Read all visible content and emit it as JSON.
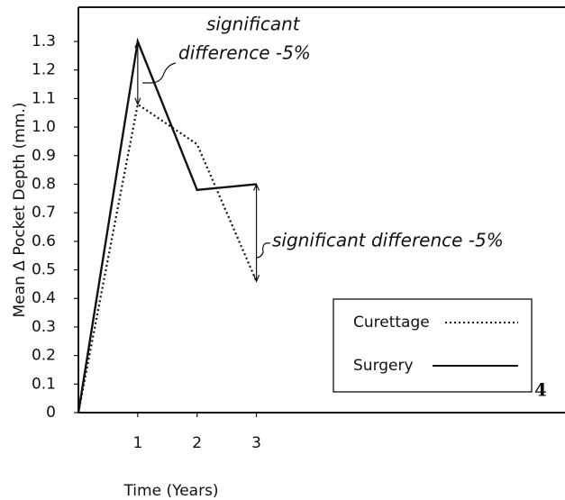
{
  "chart_data": {
    "type": "line",
    "y_label": "Mean Δ Pocket Depth (mm.)",
    "x_label": "Time (Years)",
    "x": [
      0,
      1,
      2,
      3
    ],
    "xlim": [
      0,
      8.2
    ],
    "xticks": [
      1,
      2,
      3
    ],
    "ylim": [
      0,
      1.42
    ],
    "yticks": [
      0,
      {
        "value": 0.1,
        "label": "0.1"
      },
      {
        "value": 0.2,
        "label": "0.2"
      },
      {
        "value": 0.3,
        "label": "0.3"
      },
      {
        "value": 0.4,
        "label": "0.4"
      },
      {
        "value": 0.5,
        "label": "0.5"
      },
      {
        "value": 0.6,
        "label": "0.6"
      },
      {
        "value": 0.7,
        "label": "0.7"
      },
      {
        "value": 0.8,
        "label": "0.8"
      },
      {
        "value": 0.9,
        "label": "0.9"
      },
      {
        "value": 1.0,
        "label": "1.0"
      },
      {
        "value": 1.1,
        "label": "1.1"
      },
      {
        "value": 1.2,
        "label": "1.2"
      },
      {
        "value": 1.3,
        "label": "1.3"
      }
    ],
    "series": [
      {
        "name": "Curettage",
        "color": "#111111",
        "dash": "dotted",
        "values": [
          0,
          1.08,
          0.94,
          0.46
        ]
      },
      {
        "name": "Surgery",
        "color": "#111111",
        "dash": "solid",
        "values": [
          0,
          1.3,
          0.78,
          0.8
        ]
      }
    ],
    "annotations": [
      "significant",
      "difference -5%",
      "significant difference -5%"
    ],
    "figure_label": "4"
  }
}
